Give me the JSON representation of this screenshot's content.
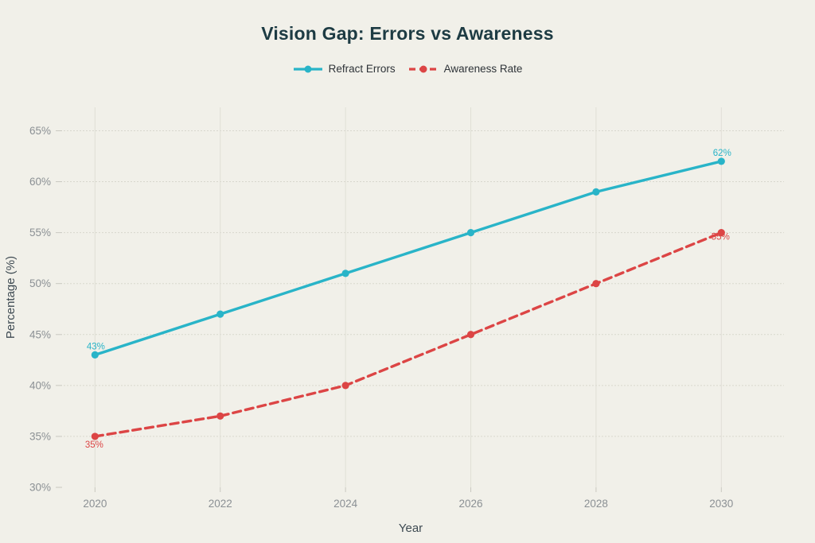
{
  "page": {
    "background": "#f1f0e9"
  },
  "chart_data": {
    "type": "line",
    "title": "Vision Gap: Errors vs Awareness",
    "xlabel": "Year",
    "ylabel": "Percentage (%)",
    "grid": true,
    "legend_position": "top",
    "xlim": [
      2019.5,
      2031.0
    ],
    "ylim": [
      30,
      67.3
    ],
    "x": [
      2020,
      2022,
      2024,
      2026,
      2028,
      2030
    ],
    "xticks": [
      {
        "label": "2020",
        "value": 2020
      },
      {
        "label": "2022",
        "value": 2022
      },
      {
        "label": "2024",
        "value": 2024
      },
      {
        "label": "2026",
        "value": 2026
      },
      {
        "label": "2028",
        "value": 2028
      },
      {
        "label": "2030",
        "value": 2030
      }
    ],
    "yticks": [
      {
        "label": "30%",
        "value": 30,
        "grid": false
      },
      {
        "label": "35%",
        "value": 35,
        "grid": true
      },
      {
        "label": "40%",
        "value": 40,
        "grid": true
      },
      {
        "label": "45%",
        "value": 45,
        "grid": true
      },
      {
        "label": "50%",
        "value": 50,
        "grid": true
      },
      {
        "label": "55%",
        "value": 55,
        "grid": true
      },
      {
        "label": "60%",
        "value": 60,
        "grid": true
      },
      {
        "label": "65%",
        "value": 65,
        "grid": true
      }
    ],
    "series": [
      {
        "name": "Refract Errors",
        "color": "#29b4c8",
        "dash": "solid",
        "values": [
          43,
          47,
          51,
          55,
          59,
          62
        ],
        "point_labels": [
          {
            "i": 0,
            "text": "43%",
            "dx": 1,
            "dy": -7
          },
          {
            "i": 5,
            "text": "62%",
            "dx": 1,
            "dy": -7
          }
        ]
      },
      {
        "name": "Awareness Rate",
        "color": "#dc4545",
        "dash": "dashed",
        "values": [
          35,
          37,
          40,
          45,
          50,
          55
        ],
        "point_labels": [
          {
            "i": 0,
            "text": "35%",
            "dx": -1,
            "dy": 14
          },
          {
            "i": 5,
            "text": "55%",
            "dx": -1,
            "dy": 9
          }
        ]
      }
    ]
  }
}
